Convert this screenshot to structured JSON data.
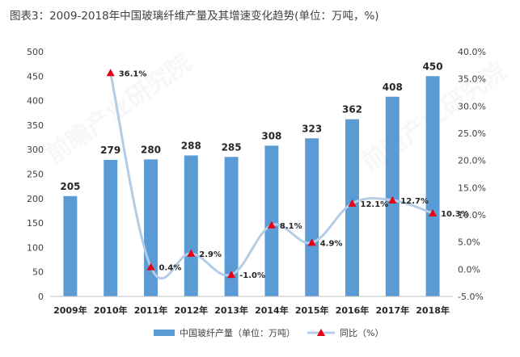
{
  "title": "图表3：2009-2018年中国玻璃纤维产量及其增速变化趋势(单位：万吨，%)",
  "colors": {
    "bar": "#5b9bd5",
    "line": "#b4cce6",
    "marker": "#e60012"
  },
  "chart_data": {
    "type": "bar",
    "categories": [
      "2009年",
      "2010年",
      "2011年",
      "2012年",
      "2013年",
      "2014年",
      "2015年",
      "2016年",
      "2017年",
      "2018年"
    ],
    "series": [
      {
        "name": "中国玻纤产量（单位：万吨）",
        "type": "bar",
        "axis": "left",
        "values": [
          205,
          279,
          280,
          288,
          285,
          308,
          323,
          362,
          408,
          450
        ],
        "labels": [
          "205",
          "279",
          "280",
          "288",
          "285",
          "308",
          "323",
          "362",
          "408",
          "450"
        ]
      },
      {
        "name": "同比（%）",
        "type": "line",
        "axis": "right",
        "values": [
          null,
          36.1,
          0.4,
          2.9,
          -1.0,
          8.1,
          4.9,
          12.1,
          12.7,
          10.3
        ],
        "labels": [
          "",
          "36.1%",
          "0.4%",
          "2.9%",
          "-1.0%",
          "8.1%",
          "4.9%",
          "12.1%",
          "12.7%",
          "10.3%"
        ]
      }
    ],
    "ylim_left": [
      0,
      500
    ],
    "left_ticks": [
      "0",
      "50",
      "100",
      "150",
      "200",
      "250",
      "300",
      "350",
      "400",
      "450",
      "500"
    ],
    "ylim_right": [
      -5,
      40
    ],
    "right_ticks": [
      "-5.0%",
      "0.0%",
      "5.0%",
      "10.0%",
      "15.0%",
      "20.0%",
      "25.0%",
      "30.0%",
      "35.0%",
      "40.0%"
    ],
    "legend_position": "bottom-center",
    "grid": false
  }
}
